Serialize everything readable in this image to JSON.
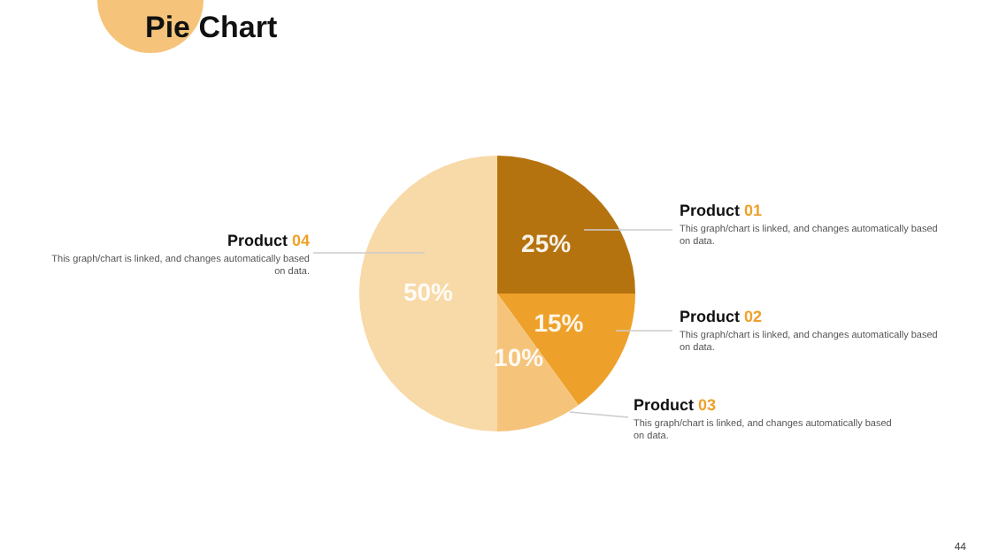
{
  "chart_data": {
    "type": "pie",
    "title": "Pie Chart",
    "categories": [
      "Product 01",
      "Product 02",
      "Product 03",
      "Product 04"
    ],
    "values": [
      25,
      15,
      10,
      50
    ],
    "value_labels": [
      "25%",
      "15%",
      "10%",
      "50%"
    ],
    "colors": [
      "#b5730f",
      "#eea12a",
      "#f5c47a",
      "#f8d9a8"
    ],
    "legend": false,
    "annotations": [
      "This graph/chart is linked, and changes automatically based on data.",
      "This graph/chart is linked, and changes automatically based on data.",
      "This graph/chart is linked, and changes automatically based on data.",
      "This graph/chart is linked, and changes automatically based on data.",
      "44"
    ]
  }
}
